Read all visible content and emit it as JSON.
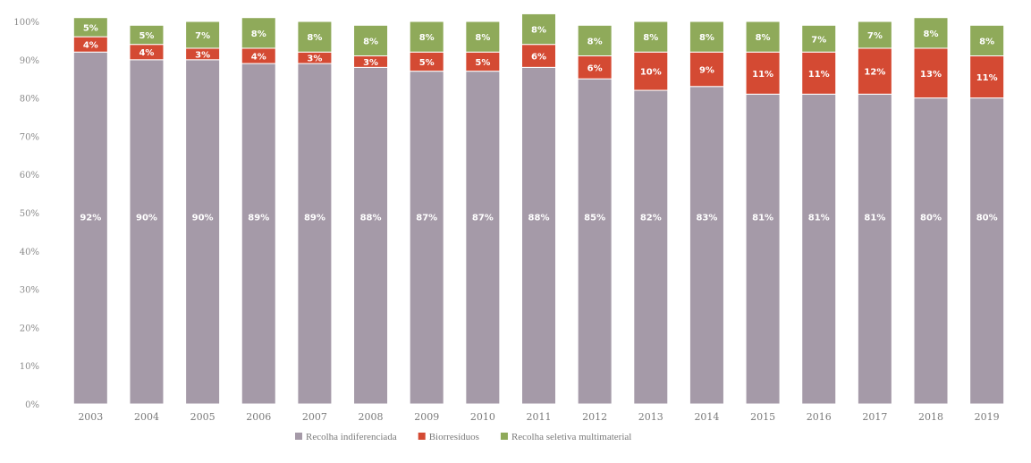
{
  "chart_data": {
    "type": "bar",
    "stacked": true,
    "categories": [
      "2003",
      "2004",
      "2005",
      "2006",
      "2007",
      "2008",
      "2009",
      "2010",
      "2011",
      "2012",
      "2013",
      "2014",
      "2015",
      "2016",
      "2017",
      "2018",
      "2019"
    ],
    "series": [
      {
        "name": "Recolha indiferenciada",
        "color": "#a59aa8",
        "values": [
          92,
          90,
          90,
          89,
          89,
          88,
          87,
          87,
          88,
          85,
          82,
          83,
          81,
          81,
          81,
          80,
          80
        ],
        "labels": [
          "92%",
          "90%",
          "90%",
          "89%",
          "89%",
          "88%",
          "87%",
          "87%",
          "88%",
          "85%",
          "82%",
          "83%",
          "81%",
          "81%",
          "81%",
          "80%",
          "80%"
        ]
      },
      {
        "name": "Biorresíduos",
        "color": "#d44a33",
        "values": [
          4,
          4,
          3,
          4,
          3,
          3,
          5,
          5,
          6,
          6,
          10,
          9,
          11,
          11,
          12,
          13,
          11
        ],
        "labels": [
          "4%",
          "4%",
          "3%",
          "4%",
          "3%",
          "3%",
          "5%",
          "5%",
          "6%",
          "6%",
          "10%",
          "9%",
          "11%",
          "11%",
          "12%",
          "13%",
          "11%"
        ]
      },
      {
        "name": "Recolha seletiva multimaterial",
        "color": "#8faa5a",
        "values": [
          5,
          5,
          7,
          8,
          8,
          8,
          8,
          8,
          8,
          8,
          8,
          8,
          8,
          7,
          7,
          8,
          8
        ],
        "labels": [
          "5%",
          "5%",
          "7%",
          "8%",
          "8%",
          "8%",
          "8%",
          "8%",
          "8%",
          "8%",
          "8%",
          "8%",
          "8%",
          "7%",
          "7%",
          "8%",
          "8%"
        ]
      }
    ],
    "y_ticks": [
      "0%",
      "10%",
      "20%",
      "30%",
      "40%",
      "50%",
      "60%",
      "70%",
      "80%",
      "90%",
      "100%"
    ],
    "ylim": [
      0,
      100
    ],
    "grid": false,
    "legend_position": "bottom",
    "title": "",
    "xlabel": "",
    "ylabel": ""
  }
}
